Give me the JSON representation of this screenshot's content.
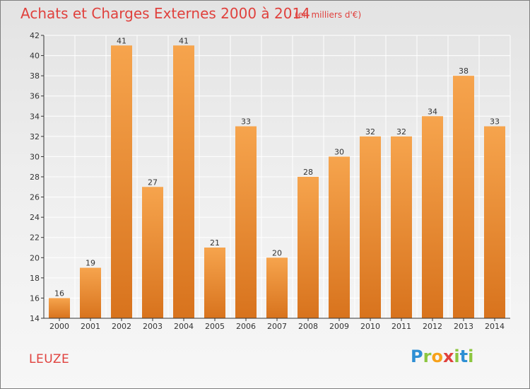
{
  "chart_data": {
    "type": "bar",
    "title": "Achats et Charges Externes 2000 à 2014",
    "subtitle": "(en milliers d'€)",
    "categories": [
      "2000",
      "2001",
      "2002",
      "2003",
      "2004",
      "2005",
      "2006",
      "2007",
      "2008",
      "2009",
      "2010",
      "2011",
      "2012",
      "2013",
      "2014"
    ],
    "values": [
      16,
      19,
      41,
      27,
      41,
      21,
      33,
      20,
      28,
      30,
      32,
      32,
      34,
      38,
      33
    ],
    "ylim": [
      14,
      42
    ],
    "yticks": [
      14,
      16,
      18,
      20,
      22,
      24,
      26,
      28,
      30,
      32,
      34,
      36,
      38,
      40,
      42
    ],
    "grid": true,
    "xlabel": "",
    "ylabel": "",
    "bar_color_top": "#f6a44d",
    "bar_color_bottom": "#d8731d"
  },
  "commune": "LEUZE",
  "logo": {
    "text": "Proxiti",
    "letters": [
      "P",
      "r",
      "o",
      "x",
      "i",
      "t",
      "i"
    ],
    "colors": [
      "#2e8fd4",
      "#8cc63f",
      "#f7a21b",
      "#e0413d",
      "#8cc63f",
      "#2e8fd4",
      "#8cc63f"
    ]
  },
  "colors": {
    "title": "#e0413d",
    "grid": "#ffffff",
    "axis": "#333333"
  }
}
